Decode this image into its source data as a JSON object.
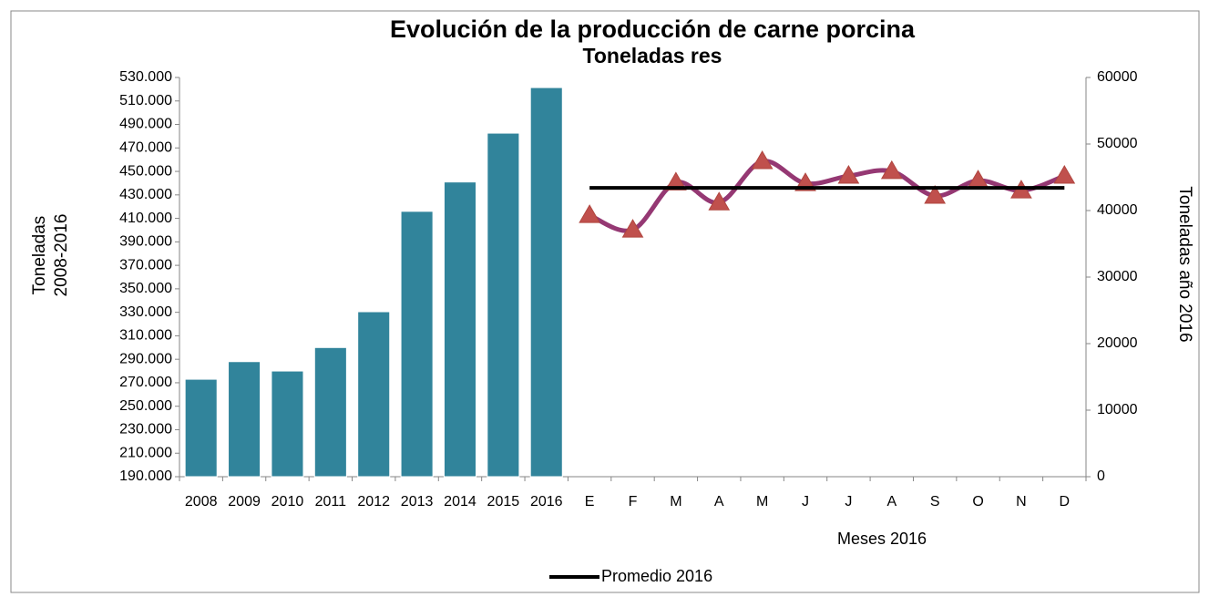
{
  "chart_data": {
    "type": "bar_line",
    "title": "Evolución de la producción de carne porcina",
    "subtitle": "Toneladas res",
    "ylabel": [
      "Toneladas",
      "2008-2016"
    ],
    "y2label": "Toneladas año 2016",
    "xlabel": "Meses 2016",
    "categories": [
      "2008",
      "2009",
      "2010",
      "2011",
      "2012",
      "2013",
      "2014",
      "2015",
      "2016",
      "E",
      "F",
      "M",
      "A",
      "M",
      "J",
      "J",
      "A",
      "S",
      "O",
      "N",
      "D"
    ],
    "series": [
      {
        "type": "bar",
        "color": "#31849b",
        "values": [
          273000,
          288000,
          280000,
          300000,
          330500,
          416000,
          441000,
          482600,
          521400,
          null,
          null,
          null,
          null,
          null,
          null,
          null,
          null,
          null,
          null,
          null,
          null
        ]
      },
      {
        "type": "smooth_line",
        "axis": "y2",
        "color": "#953873",
        "marker_color": "#c0504d",
        "values": [
          null,
          null,
          null,
          null,
          null,
          null,
          null,
          null,
          null,
          39300,
          37100,
          44200,
          41200,
          47400,
          44100,
          45200,
          45900,
          42200,
          44500,
          43000,
          45200
        ]
      },
      {
        "type": "line",
        "axis": "y2",
        "name": "Promedio 2016",
        "color": "#000000",
        "values": [
          null,
          null,
          null,
          null,
          null,
          null,
          null,
          null,
          null,
          43400,
          43400,
          43400,
          43400,
          43400,
          43400,
          43400,
          43400,
          43400,
          43400,
          43400,
          43400
        ]
      }
    ],
    "ylim": [
      190000,
      530000
    ],
    "yticks": [
      {
        "value": 190000,
        "label": "190.000"
      },
      {
        "value": 210000,
        "label": "210.000"
      },
      {
        "value": 230000,
        "label": "230.000"
      },
      {
        "value": 250000,
        "label": "250.000"
      },
      {
        "value": 270000,
        "label": "270.000"
      },
      {
        "value": 290000,
        "label": "290.000"
      },
      {
        "value": 310000,
        "label": "310.000"
      },
      {
        "value": 330000,
        "label": "330.000"
      },
      {
        "value": 350000,
        "label": "350.000"
      },
      {
        "value": 370000,
        "label": "370.000"
      },
      {
        "value": 390000,
        "label": "390.000"
      },
      {
        "value": 410000,
        "label": "410.000"
      },
      {
        "value": 430000,
        "label": "430.000"
      },
      {
        "value": 450000,
        "label": "450.000"
      },
      {
        "value": 470000,
        "label": "470.000"
      },
      {
        "value": 490000,
        "label": "490.000"
      },
      {
        "value": 510000,
        "label": "510.000"
      },
      {
        "value": 530000,
        "label": "530.000"
      }
    ],
    "y2lim": [
      0,
      60000
    ],
    "y2ticks": [
      0,
      10000,
      20000,
      30000,
      40000,
      50000,
      60000
    ],
    "legend": "bottom"
  }
}
